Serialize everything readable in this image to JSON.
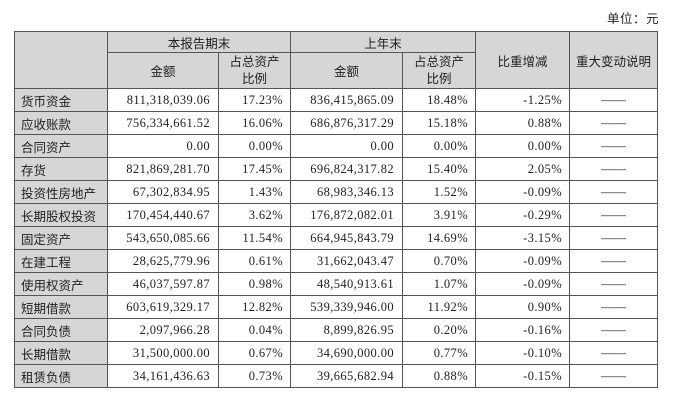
{
  "unit_label": "单位：元",
  "table": {
    "header": {
      "current_period": "本报告期末",
      "prior_period": "上年末",
      "amount": "金额",
      "pct_of_total_assets": "占总资产比例",
      "change": "比重增减",
      "note": "重大变动说明"
    },
    "rows": [
      {
        "label": "货币资金",
        "amount_current": "811,318,039.06",
        "pct_current": "17.23%",
        "amount_prior": "836,415,865.09",
        "pct_prior": "18.48%",
        "change": "-1.25%",
        "note": "——"
      },
      {
        "label": "应收账款",
        "amount_current": "756,334,661.52",
        "pct_current": "16.06%",
        "amount_prior": "686,876,317.29",
        "pct_prior": "15.18%",
        "change": "0.88%",
        "note": "——"
      },
      {
        "label": "合同资产",
        "amount_current": "0.00",
        "pct_current": "0.00%",
        "amount_prior": "0.00",
        "pct_prior": "0.00%",
        "change": "0.00%",
        "note": "——"
      },
      {
        "label": "存货",
        "amount_current": "821,869,281.70",
        "pct_current": "17.45%",
        "amount_prior": "696,824,317.82",
        "pct_prior": "15.40%",
        "change": "2.05%",
        "note": "——"
      },
      {
        "label": "投资性房地产",
        "amount_current": "67,302,834.95",
        "pct_current": "1.43%",
        "amount_prior": "68,983,346.13",
        "pct_prior": "1.52%",
        "change": "-0.09%",
        "note": "——"
      },
      {
        "label": "长期股权投资",
        "amount_current": "170,454,440.67",
        "pct_current": "3.62%",
        "amount_prior": "176,872,082.01",
        "pct_prior": "3.91%",
        "change": "-0.29%",
        "note": "——"
      },
      {
        "label": "固定资产",
        "amount_current": "543,650,085.66",
        "pct_current": "11.54%",
        "amount_prior": "664,945,843.79",
        "pct_prior": "14.69%",
        "change": "-3.15%",
        "note": "——"
      },
      {
        "label": "在建工程",
        "amount_current": "28,625,779.96",
        "pct_current": "0.61%",
        "amount_prior": "31,662,043.47",
        "pct_prior": "0.70%",
        "change": "-0.09%",
        "note": "——"
      },
      {
        "label": "使用权资产",
        "amount_current": "46,037,597.87",
        "pct_current": "0.98%",
        "amount_prior": "48,540,913.61",
        "pct_prior": "1.07%",
        "change": "-0.09%",
        "note": "——"
      },
      {
        "label": "短期借款",
        "amount_current": "603,619,329.17",
        "pct_current": "12.82%",
        "amount_prior": "539,339,946.00",
        "pct_prior": "11.92%",
        "change": "0.90%",
        "note": "——"
      },
      {
        "label": "合同负债",
        "amount_current": "2,097,966.28",
        "pct_current": "0.04%",
        "amount_prior": "8,899,826.95",
        "pct_prior": "0.20%",
        "change": "-0.16%",
        "note": "——"
      },
      {
        "label": "长期借款",
        "amount_current": "31,500,000.00",
        "pct_current": "0.67%",
        "amount_prior": "34,690,000.00",
        "pct_prior": "0.77%",
        "change": "-0.10%",
        "note": "——"
      },
      {
        "label": "租赁负债",
        "amount_current": "34,161,436.63",
        "pct_current": "0.73%",
        "amount_prior": "39,665,682.94",
        "pct_prior": "0.88%",
        "change": "-0.15%",
        "note": "——"
      }
    ]
  }
}
